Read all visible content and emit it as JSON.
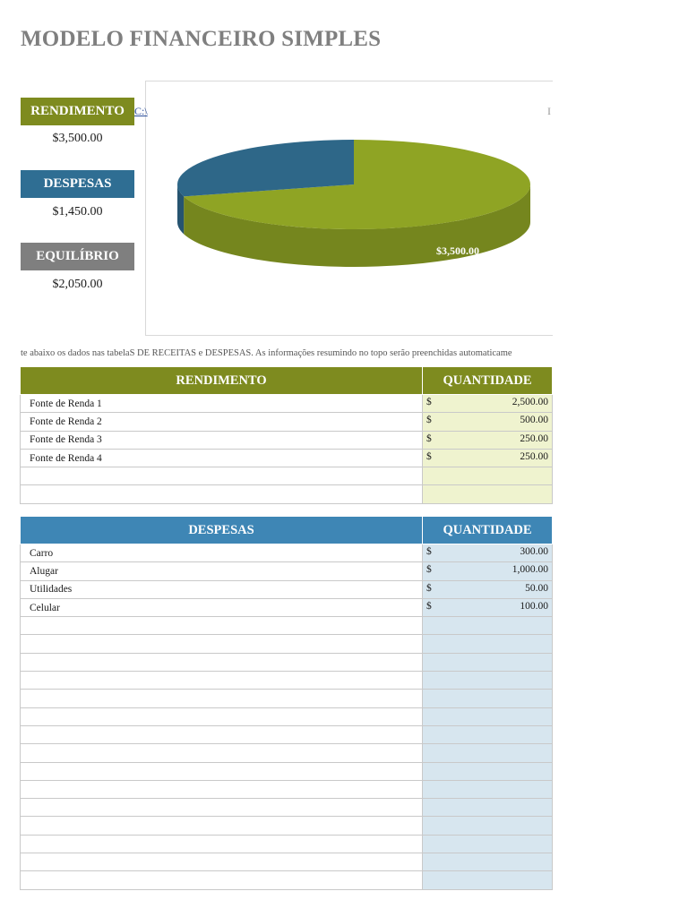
{
  "title": "MODELO FINANCEIRO SIMPLES",
  "summary": {
    "income": {
      "label": "RENDIMENTO",
      "value": "$3,500.00",
      "color": "#7e8b1f"
    },
    "expenses": {
      "label": "DESPESAS",
      "value": "$1,450.00",
      "color": "#2f6e93"
    },
    "balance": {
      "label": "EQUILÍBRIO",
      "value": "$2,050.00",
      "color": "#7f7f7f"
    }
  },
  "chart_clip_left": "C:\\",
  "chart_clip_right": "I",
  "chart_data": {
    "type": "pie",
    "categories": [
      "RENDIMENTO",
      "DESPESAS"
    ],
    "values": [
      3500,
      1450
    ],
    "colors": [
      "#8fa424",
      "#2e6788"
    ],
    "data_labels": [
      "$3,500.00"
    ],
    "style": "3d"
  },
  "instructions": "te abaixo os dados nas tabelaS DE RECEITAS e DESPESAS. As informações resumindo no topo serão preenchidas automaticame",
  "income_table": {
    "header_desc": "RENDIMENTO",
    "header_amt": "QUANTIDADE",
    "currency": "$",
    "rows": [
      {
        "desc": "Fonte de Renda 1",
        "amount": "2,500.00"
      },
      {
        "desc": "Fonte de Renda 2",
        "amount": "500.00"
      },
      {
        "desc": "Fonte de Renda 3",
        "amount": "250.00"
      },
      {
        "desc": "Fonte de Renda 4",
        "amount": "250.00"
      }
    ],
    "empty_rows": 2
  },
  "expense_table": {
    "header_desc": "DESPESAS",
    "header_amt": "QUANTIDADE",
    "currency": "$",
    "rows": [
      {
        "desc": "Carro",
        "amount": "300.00"
      },
      {
        "desc": "Alugar",
        "amount": "1,000.00"
      },
      {
        "desc": "Utilidades",
        "amount": "50.00"
      },
      {
        "desc": "Celular",
        "amount": "100.00"
      }
    ],
    "empty_rows": 15
  }
}
